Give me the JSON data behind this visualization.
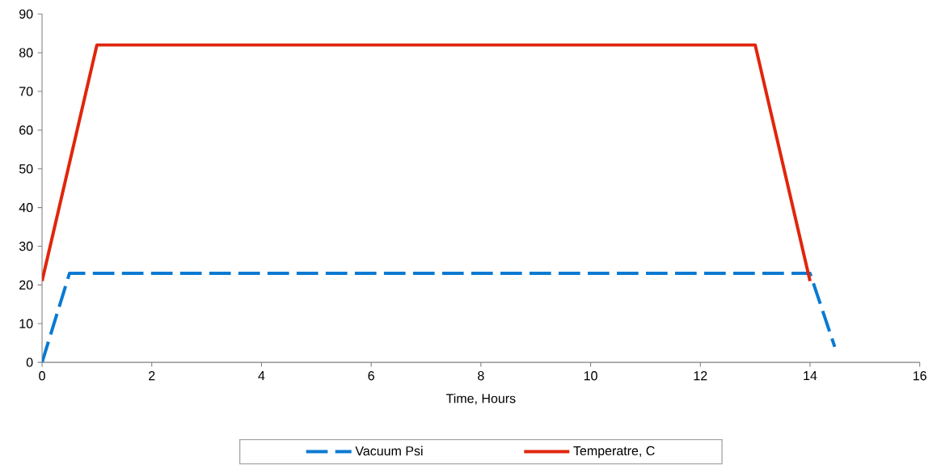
{
  "chart_data": {
    "type": "line",
    "xlabel": "Time, Hours",
    "xlim": [
      0,
      16
    ],
    "ylim": [
      0,
      90
    ],
    "xticks": [
      0,
      2,
      4,
      6,
      8,
      10,
      12,
      14,
      16
    ],
    "yticks": [
      0,
      10,
      20,
      30,
      40,
      50,
      60,
      70,
      80,
      90
    ],
    "legend": "bottom",
    "marker": "none",
    "series": [
      {
        "name": "Vacuum Psi",
        "color": "#0a7ad2",
        "line_style": "dashed",
        "x": [
          0,
          0.5,
          14,
          14.45
        ],
        "values": [
          0,
          23,
          23,
          4
        ]
      },
      {
        "name": "Temperatre, C",
        "color": "#e0260c",
        "line_style": "solid",
        "x": [
          0,
          1,
          13,
          14
        ],
        "values": [
          21,
          82,
          82,
          21
        ]
      }
    ]
  }
}
